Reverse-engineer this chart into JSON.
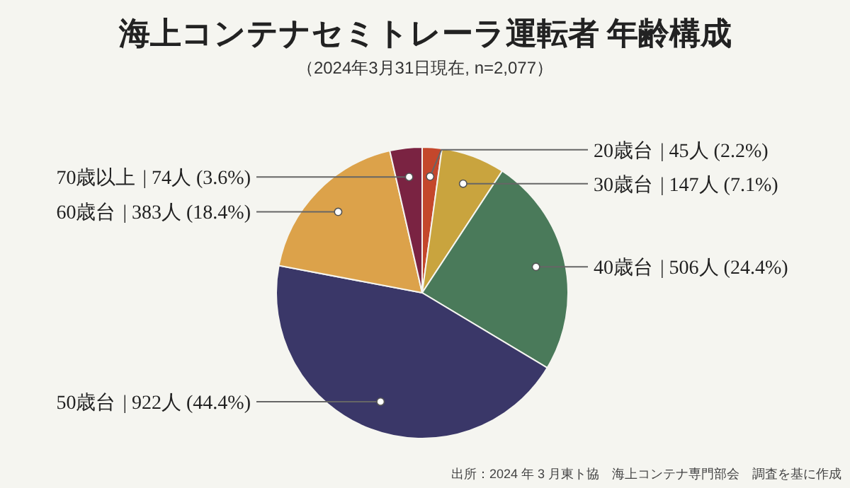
{
  "chart_data": {
    "type": "pie",
    "title": "海上コンテナセミトレーラ運転者 年齢構成",
    "subtitle": "（2024年3月31日現在, n=2,077）",
    "categories": [
      "20歳台",
      "30歳台",
      "40歳台",
      "50歳台",
      "60歳台",
      "70歳以上"
    ],
    "values": [
      45,
      147,
      506,
      922,
      383,
      74
    ],
    "value_labels": [
      "| 45人 (2.2%)",
      "| 147人 (7.1%)",
      "| 506人 (24.4%)",
      "| 922人 (44.4%)",
      "| 383人 (18.4%)",
      "| 74人 (3.6%)"
    ],
    "colors": [
      "#c4472c",
      "#c9a43e",
      "#4a7a5a",
      "#3a3768",
      "#dca24a",
      "#7a2342"
    ],
    "annotations": [
      "出所：2024 年 3 月東ト協　海上コンテナ専門部会　調査を基に作成"
    ]
  }
}
